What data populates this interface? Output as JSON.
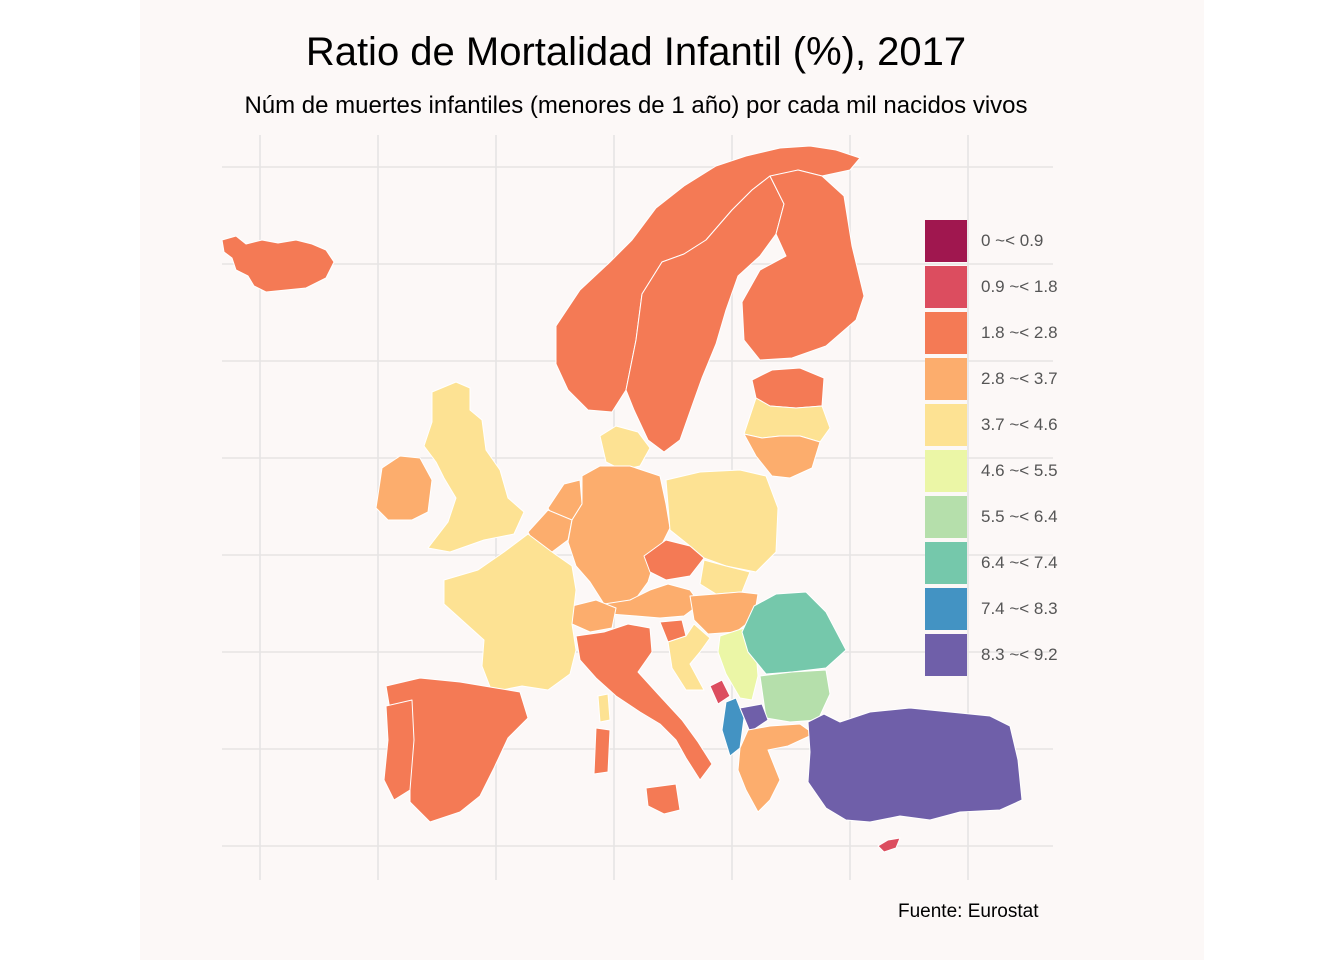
{
  "title": "Ratio de Mortalidad Infantil (%), 2017",
  "subtitle": "Núm de muertes infantiles (menores de 1 año) por cada mil nacidos vivos",
  "caption": "Fuente: Eurostat",
  "legend": [
    {
      "label": "0 ~< 0.9",
      "color": "#a0174f"
    },
    {
      "label": "0.9 ~< 1.8",
      "color": "#dc4d5f"
    },
    {
      "label": "1.8 ~< 2.8",
      "color": "#f47a55"
    },
    {
      "label": "2.8 ~< 3.7",
      "color": "#fcad6d"
    },
    {
      "label": "3.7 ~< 4.6",
      "color": "#fde293"
    },
    {
      "label": "4.6 ~< 5.5",
      "color": "#ebf6a6"
    },
    {
      "label": "5.5 ~< 6.4",
      "color": "#b5dfab"
    },
    {
      "label": "6.4 ~< 7.4",
      "color": "#75c8ab"
    },
    {
      "label": "7.4 ~< 8.3",
      "color": "#4393c3"
    },
    {
      "label": "8.3 ~< 9.2",
      "color": "#6f5fa9"
    }
  ],
  "regions": [
    {
      "name": "Iceland",
      "class": "1.8 ~< 2.8"
    },
    {
      "name": "Norway",
      "class": "1.8 ~< 2.8"
    },
    {
      "name": "Sweden",
      "class": "1.8 ~< 2.8"
    },
    {
      "name": "Finland",
      "class": "1.8 ~< 2.8"
    },
    {
      "name": "Estonia",
      "class": "1.8 ~< 2.8"
    },
    {
      "name": "Latvia",
      "class": "3.7 ~< 4.6"
    },
    {
      "name": "Lithuania",
      "class": "2.8 ~< 3.7"
    },
    {
      "name": "United Kingdom",
      "class": "3.7 ~< 4.6"
    },
    {
      "name": "Ireland",
      "class": "2.8 ~< 3.7"
    },
    {
      "name": "Denmark",
      "class": "3.7 ~< 4.6"
    },
    {
      "name": "Netherlands",
      "class": "2.8 ~< 3.7"
    },
    {
      "name": "Belgium",
      "class": "2.8 ~< 3.7"
    },
    {
      "name": "Germany",
      "class": "2.8 ~< 3.7"
    },
    {
      "name": "Poland",
      "class": "3.7 ~< 4.6"
    },
    {
      "name": "Czechia",
      "class": "1.8 ~< 2.8"
    },
    {
      "name": "Slovakia",
      "class": "3.7 ~< 4.6"
    },
    {
      "name": "Austria",
      "class": "2.8 ~< 3.7"
    },
    {
      "name": "Hungary",
      "class": "2.8 ~< 3.7"
    },
    {
      "name": "Switzerland",
      "class": "2.8 ~< 3.7"
    },
    {
      "name": "Slovenia",
      "class": "1.8 ~< 2.8"
    },
    {
      "name": "Croatia",
      "class": "3.7 ~< 4.6"
    },
    {
      "name": "France",
      "class": "3.7 ~< 4.6"
    },
    {
      "name": "Spain",
      "class": "1.8 ~< 2.8"
    },
    {
      "name": "Portugal",
      "class": "1.8 ~< 2.8"
    },
    {
      "name": "Italy",
      "class": "1.8 ~< 2.8"
    },
    {
      "name": "Sardinia",
      "class": "1.8 ~< 2.8"
    },
    {
      "name": "Corsica",
      "class": "3.7 ~< 4.6"
    },
    {
      "name": "Sicily",
      "class": "1.8 ~< 2.8"
    },
    {
      "name": "Serbia",
      "class": "4.6 ~< 5.5"
    },
    {
      "name": "Romania",
      "class": "6.4 ~< 7.4"
    },
    {
      "name": "Bulgaria",
      "class": "5.5 ~< 6.4"
    },
    {
      "name": "Montenegro",
      "class": "0.9 ~< 1.8"
    },
    {
      "name": "Albania",
      "class": "7.4 ~< 8.3"
    },
    {
      "name": "North Macedonia",
      "class": "8.3 ~< 9.2"
    },
    {
      "name": "Greece",
      "class": "2.8 ~< 3.7"
    },
    {
      "name": "Turkey",
      "class": "8.3 ~< 9.2"
    },
    {
      "name": "Cyprus",
      "class": "0.9 ~< 1.8"
    }
  ]
}
